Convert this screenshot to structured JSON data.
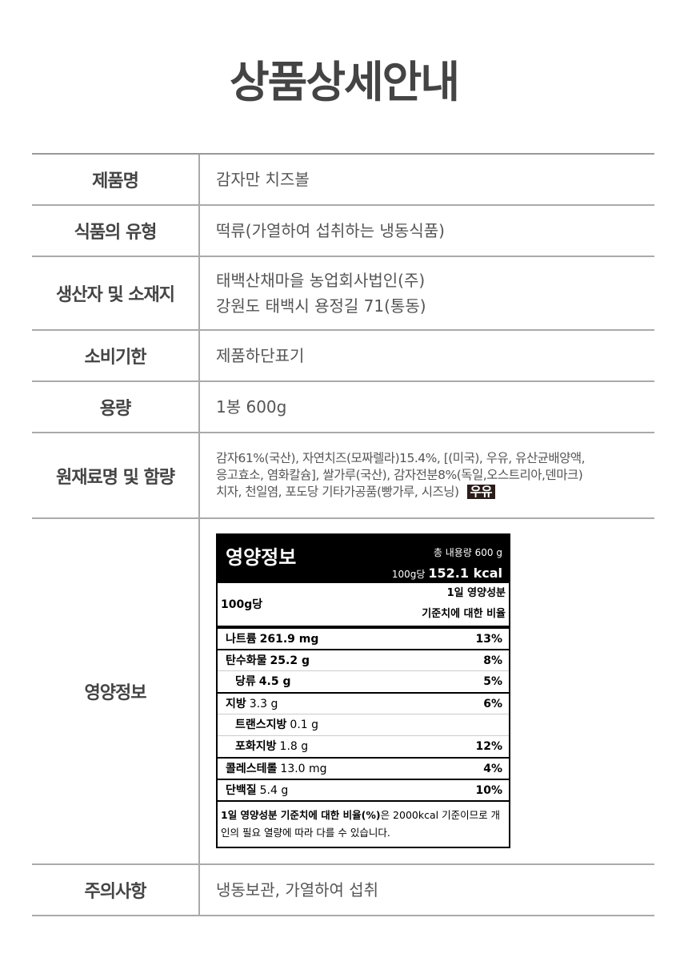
{
  "title": "상품상세안내",
  "rows": [
    {
      "label": "제품명",
      "value": "감자만 치즈볼"
    },
    {
      "label": "식품의 유형",
      "value": "떡류(가열하여 섭취하는 냉동식품)"
    },
    {
      "label": "생산자 및 소재지",
      "lines": [
        "태백산채마을 농업회사법인(주)",
        "강원도 태백시 용정길 71(통동)"
      ]
    },
    {
      "label": "소비기한",
      "value": "제품하단표기"
    },
    {
      "label": "용량",
      "value": "1봉 600g"
    },
    {
      "label": "원재료명 및 함량",
      "lines": [
        "감자61%(국산), 자연치즈(모짜렐라)15.4%, [(미국), 우유, 유산균배양액,",
        "응고효소, 염화칼슘], 쌀가루(국산), 감자전분8%(독일,오스트리아,덴마크)",
        "치자, 천일염, 포도당 기타가공품(빵가루, 시즈닝)"
      ],
      "allergen": "우유"
    },
    {
      "label": "영양정보"
    },
    {
      "label": "주의사항",
      "value": "냉동보관, 가열하여 섭취"
    }
  ],
  "nutrition": {
    "title": "영양정보",
    "total": "총 내용량 600 g",
    "per_label": "100g당",
    "kcal": "152.1 kcal",
    "section_left": "100g당",
    "section_right1": "1일 영양성분",
    "section_right2": "기준치에 대한 비율",
    "items": [
      {
        "name": "나트륨",
        "amount": "261.9 mg",
        "pct": "13%"
      },
      {
        "name": "탄수화물",
        "amount": "25.2 g",
        "pct": "8%"
      },
      {
        "name": "당류",
        "amount": "4.5 g",
        "pct": "5%"
      },
      {
        "name": "지방",
        "amount": "3.3 g",
        "pct": "6%"
      },
      {
        "name": "트랜스지방",
        "amount": "0.1 g",
        "pct": ""
      },
      {
        "name": "포화지방",
        "amount": "1.8 g",
        "pct": "12%"
      },
      {
        "name": "콜레스테롤",
        "amount": "13.0 mg",
        "pct": "4%"
      },
      {
        "name": "단백질",
        "amount": "5.4 g",
        "pct": "10%"
      }
    ],
    "foot_bold": "1일 영양성분 기준치에 대한 비율(%)",
    "foot_rest": "은 2000kcal 기준이므로 개인의 필요 열량에 따라 다를 수 있습니다."
  }
}
